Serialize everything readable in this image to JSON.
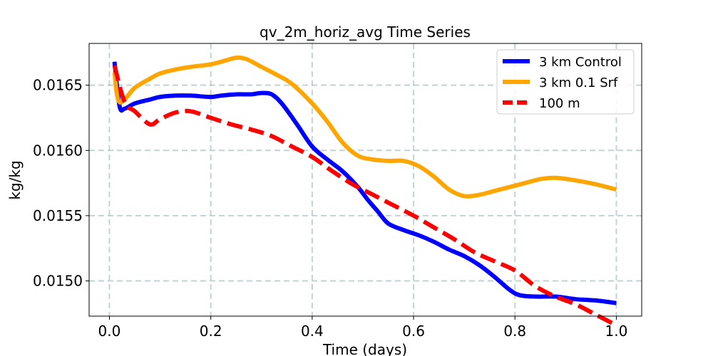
{
  "chart_data": {
    "type": "line",
    "title": "qv_2m_horiz_avg Time Series",
    "xlabel": "Time (days)",
    "ylabel": "kg/kg",
    "xlim": [
      -0.04,
      1.05
    ],
    "ylim": [
      0.01473,
      0.01682
    ],
    "xticks": [
      0.0,
      0.2,
      0.4,
      0.6,
      0.8,
      1.0
    ],
    "xtick_labels": [
      "0.0",
      "0.2",
      "0.4",
      "0.6",
      "0.8",
      "1.0"
    ],
    "yticks": [
      0.015,
      0.0155,
      0.016,
      0.0165
    ],
    "ytick_labels": [
      "0.0150",
      "0.0155",
      "0.0160",
      "0.0165"
    ],
    "grid": true,
    "grid_style": "dashed",
    "legend_position": "top-right",
    "series": [
      {
        "name": "3 km Control",
        "color": "#0000ff",
        "style": "solid",
        "x": [
          0.01,
          0.02,
          0.03,
          0.05,
          0.08,
          0.1,
          0.13,
          0.16,
          0.2,
          0.22,
          0.25,
          0.28,
          0.3,
          0.32,
          0.34,
          0.37,
          0.4,
          0.43,
          0.46,
          0.49,
          0.51,
          0.53,
          0.55,
          0.58,
          0.61,
          0.64,
          0.67,
          0.7,
          0.73,
          0.76,
          0.79,
          0.81,
          0.84,
          0.88,
          0.92,
          0.96,
          1.0
        ],
        "y": [
          0.01668,
          0.01634,
          0.01632,
          0.01636,
          0.01639,
          0.01641,
          0.01642,
          0.01642,
          0.01641,
          0.01642,
          0.01643,
          0.01643,
          0.01644,
          0.01643,
          0.01636,
          0.0162,
          0.01603,
          0.01593,
          0.01584,
          0.01572,
          0.01562,
          0.01553,
          0.01544,
          0.01539,
          0.01535,
          0.0153,
          0.01524,
          0.01519,
          0.01512,
          0.01503,
          0.01493,
          0.01489,
          0.01488,
          0.01488,
          0.01486,
          0.01485,
          0.01483
        ]
      },
      {
        "name": "3 km 0.1 Srf",
        "color": "#ffa500",
        "style": "solid",
        "x": [
          0.01,
          0.02,
          0.05,
          0.08,
          0.1,
          0.13,
          0.16,
          0.2,
          0.23,
          0.25,
          0.27,
          0.3,
          0.33,
          0.36,
          0.4,
          0.43,
          0.46,
          0.49,
          0.52,
          0.55,
          0.58,
          0.61,
          0.64,
          0.67,
          0.7,
          0.73,
          0.76,
          0.79,
          0.82,
          0.85,
          0.88,
          0.92,
          0.96,
          1.0
        ],
        "y": [
          0.0166,
          0.01637,
          0.01648,
          0.01655,
          0.01659,
          0.01662,
          0.01664,
          0.01666,
          0.01669,
          0.01671,
          0.0167,
          0.01664,
          0.01658,
          0.01651,
          0.01636,
          0.01622,
          0.01606,
          0.01596,
          0.01593,
          0.01592,
          0.01592,
          0.01588,
          0.0158,
          0.0157,
          0.01565,
          0.01566,
          0.01569,
          0.01572,
          0.01575,
          0.01578,
          0.01579,
          0.01577,
          0.01574,
          0.0157
        ]
      },
      {
        "name": "100 m",
        "color": "#ff0000",
        "style": "dashed",
        "x": [
          0.01,
          0.03,
          0.05,
          0.08,
          0.1,
          0.13,
          0.16,
          0.2,
          0.24,
          0.28,
          0.32,
          0.36,
          0.4,
          0.44,
          0.48,
          0.52,
          0.56,
          0.6,
          0.64,
          0.68,
          0.72,
          0.76,
          0.8,
          0.84,
          0.88,
          0.92,
          0.96,
          1.0
        ],
        "y": [
          0.01665,
          0.01637,
          0.0163,
          0.0162,
          0.01624,
          0.01629,
          0.0163,
          0.01625,
          0.0162,
          0.01616,
          0.01611,
          0.01603,
          0.01595,
          0.01584,
          0.01574,
          0.01566,
          0.01558,
          0.0155,
          0.01541,
          0.01532,
          0.01522,
          0.01515,
          0.01508,
          0.01496,
          0.01488,
          0.01482,
          0.01474,
          0.01466
        ]
      }
    ]
  }
}
